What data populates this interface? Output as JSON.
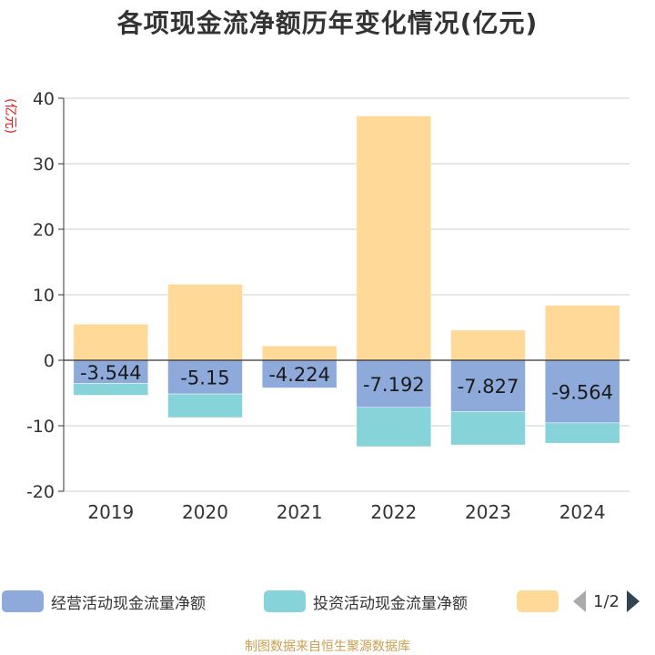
{
  "title": "各项现金流净额历年变化情况(亿元)",
  "unit_label": "(亿元)",
  "legend": {
    "items": [
      {
        "label": "经营活动现金流量净额",
        "color": "#8eaadb"
      },
      {
        "label": "投资活动现金流量净额",
        "color": "#86d3d9"
      },
      {
        "label": "",
        "color": "#fed997"
      }
    ],
    "page": "1/2"
  },
  "source": "制图数据来自恒生聚源数据库",
  "chart_data": {
    "type": "bar",
    "stacked": true,
    "categories": [
      "2019",
      "2020",
      "2021",
      "2022",
      "2023",
      "2024"
    ],
    "ylim": [
      -20,
      40
    ],
    "yticks": [
      40,
      30,
      20,
      10,
      0,
      -10,
      -20
    ],
    "grid": true,
    "series": [
      {
        "name": "经营活动现金流量净额",
        "color": "#8eaadb",
        "values": [
          -3.544,
          -5.15,
          -4.224,
          -7.192,
          -7.827,
          -9.564
        ],
        "labels": [
          "-3.544",
          "-5.15",
          "-4.224",
          "-7.192",
          "-7.827",
          "-9.564"
        ]
      },
      {
        "name": "投资活动现金流量净额",
        "color": "#86d3d9",
        "values": [
          -1.8,
          -3.6,
          0.0,
          -6.0,
          -5.1,
          -3.1
        ]
      },
      {
        "name": "",
        "color": "#fed997",
        "values": [
          5.5,
          11.6,
          2.2,
          37.3,
          4.6,
          8.4
        ]
      }
    ]
  }
}
